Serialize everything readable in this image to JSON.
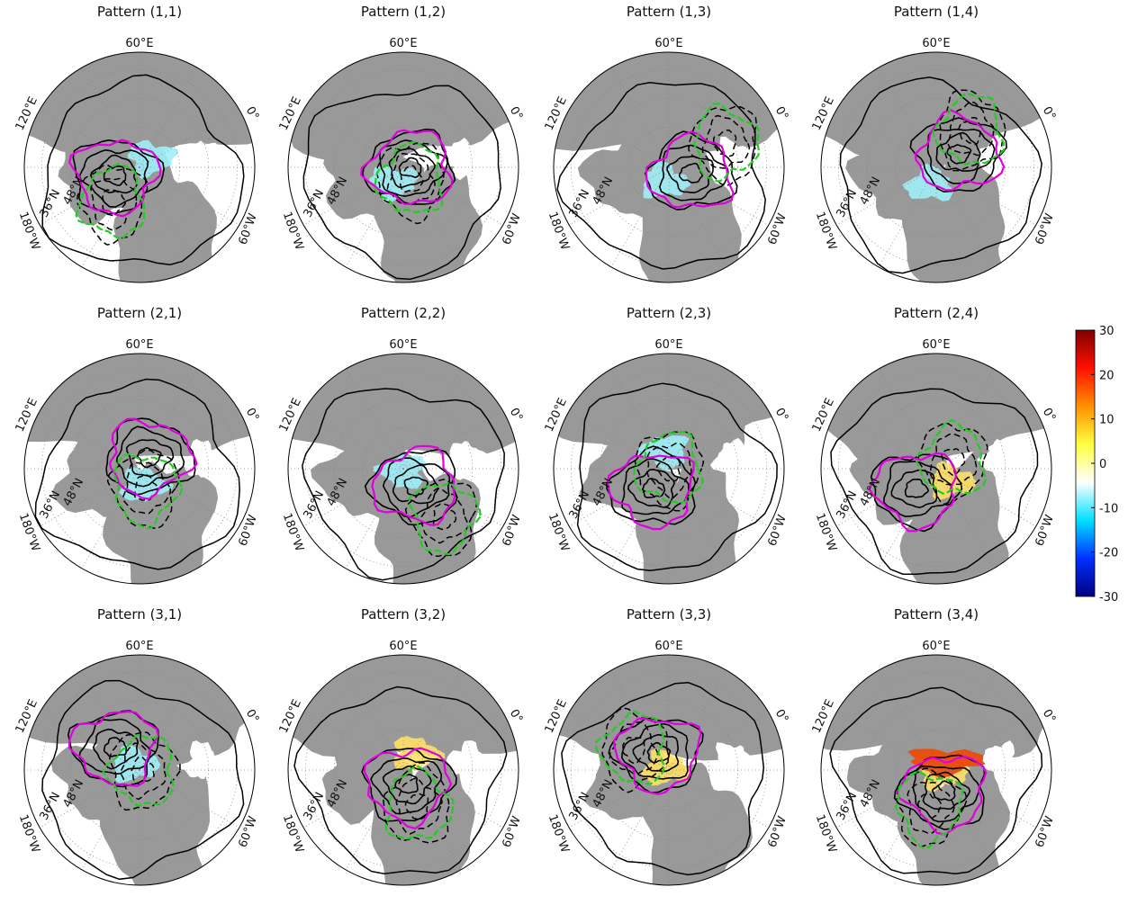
{
  "panels": [
    {
      "title": "Pattern (1,1)"
    },
    {
      "title": "Pattern (1,2)"
    },
    {
      "title": "Pattern (1,3)"
    },
    {
      "title": "Pattern (1,4)"
    },
    {
      "title": "Pattern (2,1)"
    },
    {
      "title": "Pattern (2,2)"
    },
    {
      "title": "Pattern (2,3)"
    },
    {
      "title": "Pattern (2,4)"
    },
    {
      "title": "Pattern (3,1)"
    },
    {
      "title": "Pattern (3,2)"
    },
    {
      "title": "Pattern (3,3)"
    },
    {
      "title": "Pattern (3,4)"
    }
  ],
  "map_labels": {
    "lon_60e": "60°E",
    "lon_120e": "120°E",
    "lon_0": "0°",
    "lon_180w": "180°W",
    "lon_60w": "60°W",
    "lat_36n": "36°N",
    "lat_48n": "48°N"
  },
  "colorbar": {
    "lim": [
      -30,
      30
    ],
    "ticks": [
      30,
      20,
      10,
      0,
      -10,
      -20,
      -30
    ],
    "colors": [
      "#00007f",
      "#0030ff",
      "#00e0ff",
      "#ffffff",
      "#ffff40",
      "#ff9000",
      "#ff1000",
      "#800000"
    ]
  }
}
